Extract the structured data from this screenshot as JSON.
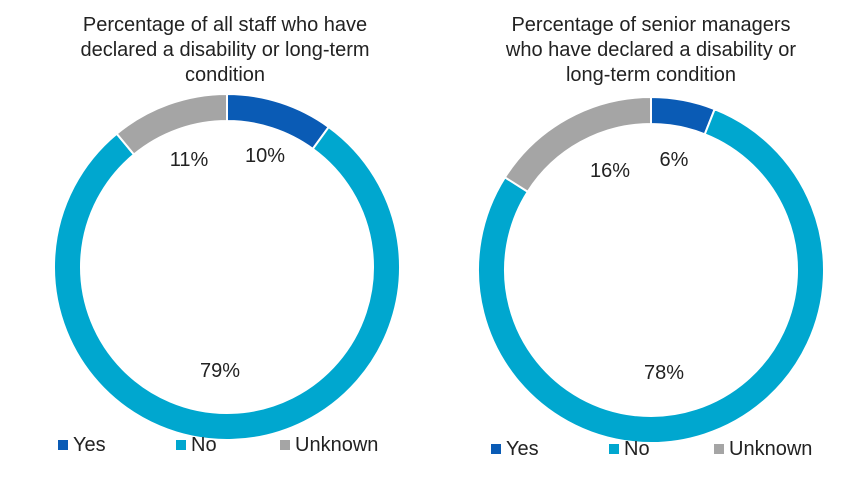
{
  "colors": {
    "yes": "#0A5BB5",
    "no": "#00A7CF",
    "unknown": "#A5A5A5",
    "separator": "#FFFFFF",
    "text": "#222222"
  },
  "chart_data": [
    {
      "type": "pie",
      "variant": "donut",
      "title_lines": [
        "Percentage of all staff who have",
        "declared a disability or long-term",
        "condition"
      ],
      "categories": [
        "Yes",
        "No",
        "Unknown"
      ],
      "values": [
        10,
        79,
        11
      ],
      "labels": [
        "10%",
        "79%",
        "11%"
      ],
      "legend": {
        "placement": "bottom",
        "entries": [
          "Yes",
          "No",
          "Unknown"
        ]
      }
    },
    {
      "type": "pie",
      "variant": "donut",
      "title_lines": [
        "Percentage of senior managers",
        "who have declared a disability or",
        "long-term condition"
      ],
      "categories": [
        "Yes",
        "No",
        "Unknown"
      ],
      "values": [
        6,
        78,
        16
      ],
      "labels": [
        "6%",
        "78%",
        "16%"
      ],
      "legend": {
        "placement": "bottom",
        "entries": [
          "Yes",
          "No",
          "Unknown"
        ]
      }
    }
  ]
}
